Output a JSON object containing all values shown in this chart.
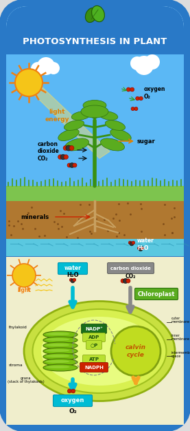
{
  "title": "PHOTOSYNTHESIS IN PLANT",
  "bg_border_color": "#2979c7",
  "top_section_sky": "#5bb8f5",
  "soil_color": "#b07830",
  "water_color": "#5ac8e0",
  "bottom_bg": "#f0eecc",
  "light_label_color": "#f5a623",
  "carbon_dioxide_label": "carbon\ndioxide\nCO₂",
  "oxygen_label": "oxygen\nO₂",
  "sugar_label": "sugar",
  "minerals_label": "minerals",
  "water_label": "water\nH₂O",
  "chloroplast_label": "Chloroplast",
  "calvin_cycle_label": "calvin\ncycle",
  "oxygen_bottom": "oxygen\nO₂",
  "light_bottom": "light",
  "thylakoid_label": "thylakoid",
  "stroma_label": "stroma",
  "grana_label": "grana\n(stack of thylakoids)",
  "outer_mem": "outer\nmembrane",
  "inner_mem": "inner\nmembrane",
  "inter_mem": "intermembrane\nspace",
  "nadp_label": "NADP⁺",
  "adp_label": "ADP",
  "p_label": "○P",
  "atp_label": "ATP",
  "nadph_label": "NADPH",
  "sun_color": "#f5c518",
  "sun_ray_color": "#f08010",
  "leaf_green": "#5aac1f",
  "dark_green": "#2d7d0a",
  "red_molecule": "#cc2200",
  "dark_molecule": "#333333",
  "cyan_arrow": "#00bcd4",
  "orange_arrow": "#f5a623",
  "gray_arrow": "#888888",
  "carbon_dioxide_bottom": "carbon dioxide",
  "water_bottom": "water"
}
